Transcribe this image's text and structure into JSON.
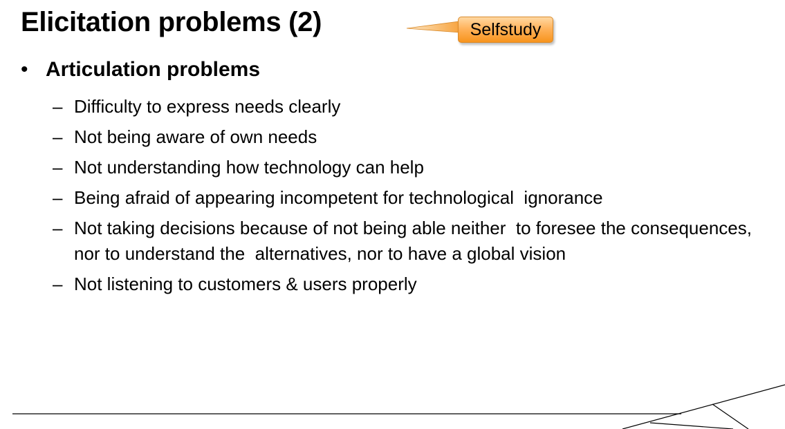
{
  "slide": {
    "title": "Elicitation problems (2)",
    "badge": "Selfstudy",
    "main_bullet_symbol": "•",
    "main_bullet": "Articulation problems",
    "sub_bullet_symbol": "–",
    "sub_bullets": [
      "Difficulty to express needs clearly",
      "Not being aware of own needs",
      "Not understanding how technology can help",
      "Being afraid of appearing incompetent for technological  ignorance",
      "Not taking decisions because of not being able neither  to foresee the consequences, nor to understand the  alternatives, nor to have a global vision",
      "Not listening to customers & users properly"
    ]
  },
  "colors": {
    "badge_fill": "#f7941d",
    "badge_highlight": "#ffd8a3",
    "text": "#000000",
    "footer_line": "#000000"
  }
}
